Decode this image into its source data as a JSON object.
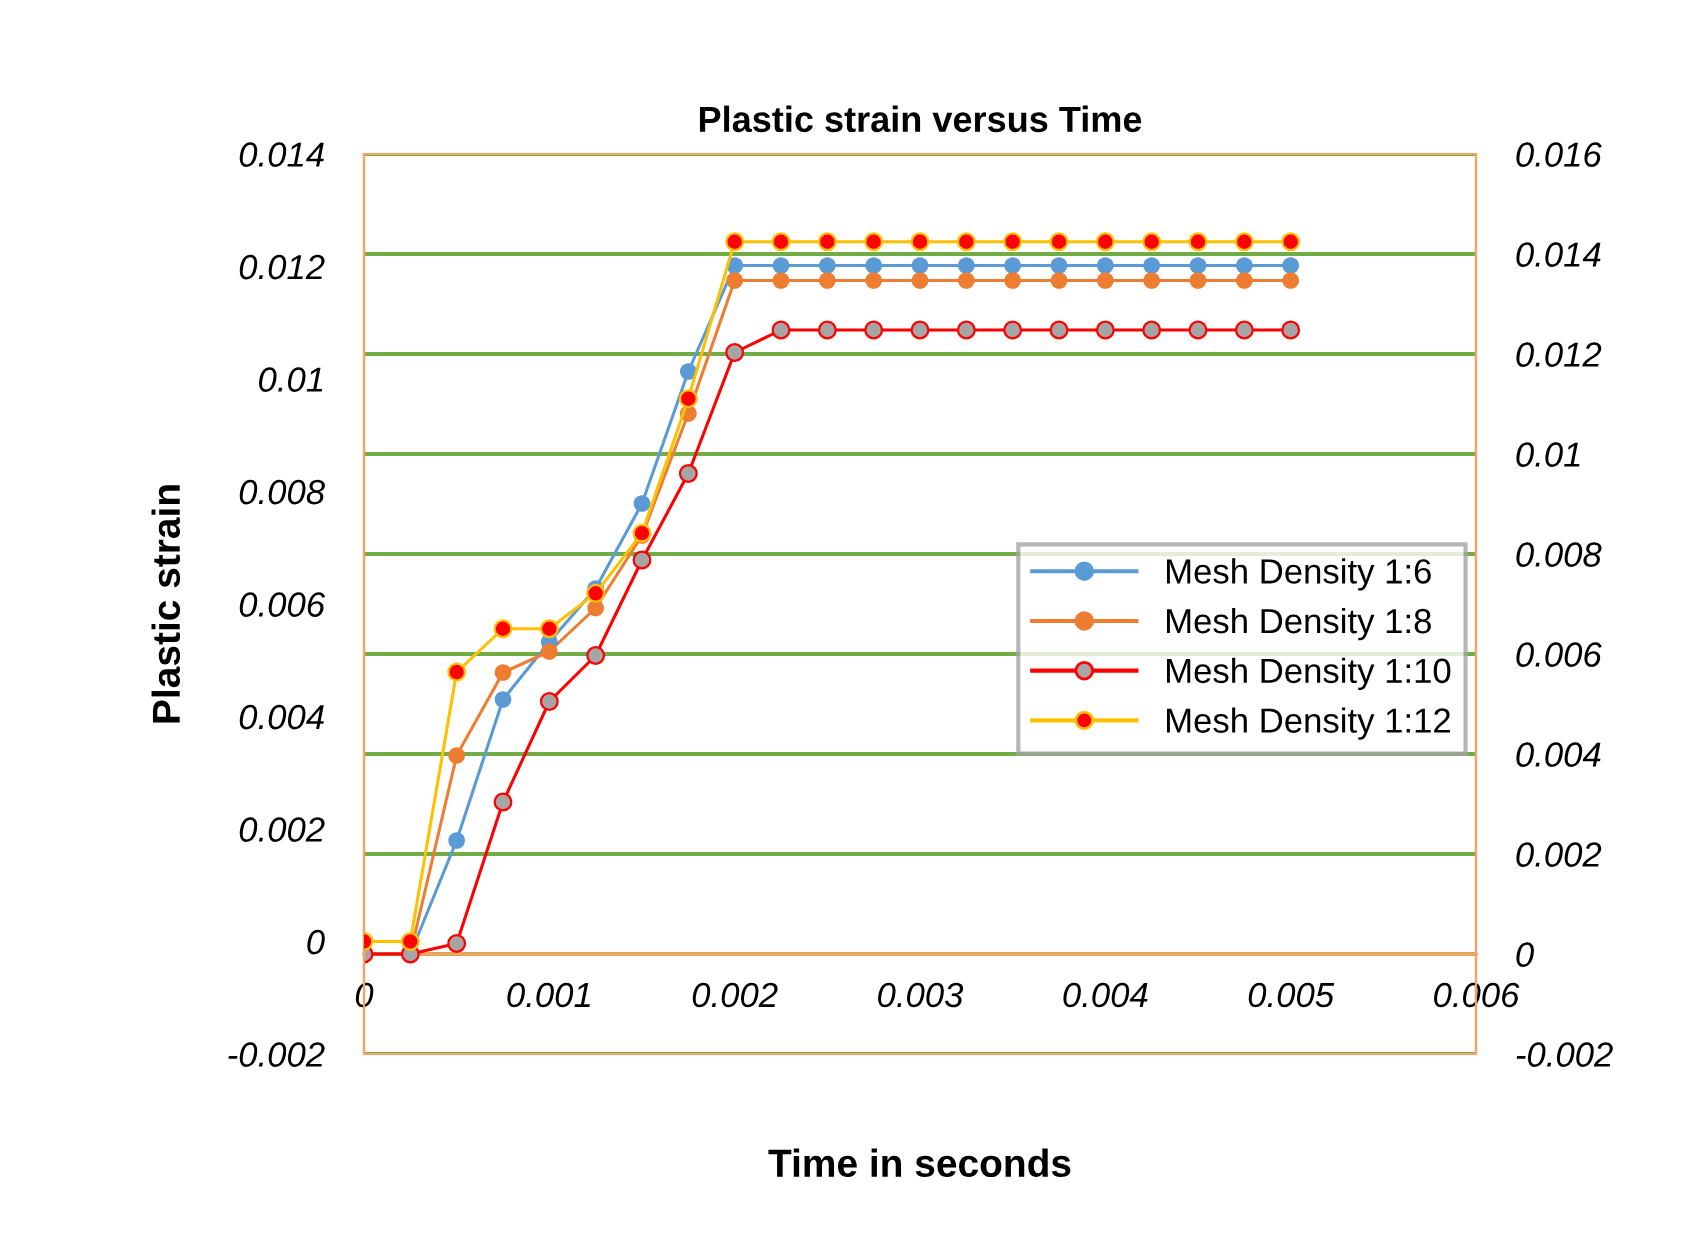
{
  "chart_data": {
    "type": "line",
    "title": "Plastic strain versus Time",
    "xlabel": "Time in seconds",
    "ylabel": "Plastic strain",
    "x": [
      0,
      0.00025,
      0.0005,
      0.00075,
      0.001,
      0.00125,
      0.0015,
      0.00175,
      0.002,
      0.00225,
      0.0025,
      0.00275,
      0.003,
      0.00325,
      0.0035,
      0.00375,
      0.004,
      0.00425,
      0.0045,
      0.00475,
      0.005
    ],
    "series": [
      {
        "name": "Mesh Density 1:6",
        "color": "#5b9bd5",
        "axis": "y2",
        "values": [
          0,
          0,
          0.00227,
          0.00509,
          0.00624,
          0.00731,
          0.00901,
          0.01165,
          0.01377,
          0.01377,
          0.01377,
          0.01377,
          0.01377,
          0.01377,
          0.01377,
          0.01377,
          0.01377,
          0.01377,
          0.01377,
          0.01377,
          0.01377
        ]
      },
      {
        "name": "Mesh Density 1:8",
        "color": "#ed7d31",
        "axis": "y2",
        "values": [
          0,
          0,
          0.00397,
          0.00563,
          0.00605,
          0.00692,
          0.00837,
          0.01081,
          0.01347,
          0.01347,
          0.01347,
          0.01347,
          0.01347,
          0.01347,
          0.01347,
          0.01347,
          0.01347,
          0.01347,
          0.01347,
          0.01347,
          0.01347
        ]
      },
      {
        "name": "Mesh Density 1:10",
        "color": "#ff0000",
        "colors": [
          "#a5a5a5",
          "#a5a5a5",
          "#a5a5a5",
          "#a5a5a5",
          "#a5a5a5",
          "#a5a5a5",
          "#a5a5a5",
          "#a5a5a5",
          "#a5a5a5",
          "#a5a5a5",
          "#a5a5a5",
          "#a5a5a5",
          "#a5a5a5",
          "#a5a5a5",
          "#a5a5a5",
          "#a5a5a5",
          "#a5a5a5",
          "#a5a5a5",
          "#a5a5a5",
          "#a5a5a5",
          "#a5a5a5"
        ],
        "axis": "y2",
        "values": [
          0,
          0,
          0.00021,
          0.00304,
          0.00505,
          0.00597,
          0.00788,
          0.00961,
          0.01203,
          0.01248,
          0.01248,
          0.01248,
          0.01248,
          0.01248,
          0.01248,
          0.01248,
          0.01248,
          0.01248,
          0.01248,
          0.01248,
          0.01248
        ]
      },
      {
        "name": "Mesh Density 1:12",
        "color": "#ffc000",
        "colors": [
          "#ff0000",
          "#ff0000",
          "#ff0000",
          "#ff0000",
          "#ff0000",
          "#ff0000",
          "#ff0000",
          "#ff0000",
          "#ff0000",
          "#ff0000",
          "#ff0000",
          "#ff0000",
          "#ff0000",
          "#ff0000",
          "#ff0000",
          "#ff0000",
          "#ff0000",
          "#ff0000",
          "#ff0000",
          "#ff0000",
          "#ff0000"
        ],
        "axis": "y",
        "values": [
          0,
          0,
          0.00479,
          0.00556,
          0.00556,
          0.00619,
          0.00726,
          0.00965,
          0.01244,
          0.01244,
          0.01244,
          0.01244,
          0.01244,
          0.01244,
          0.01244,
          0.01244,
          0.01244,
          0.01244,
          0.01244,
          0.01244,
          0.01244
        ]
      }
    ],
    "xlim": [
      0,
      0.006
    ],
    "xticks": [
      0,
      0.001,
      0.002,
      0.003,
      0.004,
      0.005,
      0.006
    ],
    "ylim": [
      -0.002,
      0.014
    ],
    "yticks": [
      -0.002,
      0,
      0.002,
      0.004,
      0.006,
      0.008,
      0.01,
      0.012,
      0.014
    ],
    "y2lim": [
      -0.002,
      0.016
    ],
    "y2ticks": [
      -0.002,
      0,
      0.002,
      0.004,
      0.006,
      0.008,
      0.01,
      0.012,
      0.014,
      0.016
    ],
    "grid": "y",
    "legend": "right",
    "marker": "circle",
    "line_style": "solid"
  }
}
